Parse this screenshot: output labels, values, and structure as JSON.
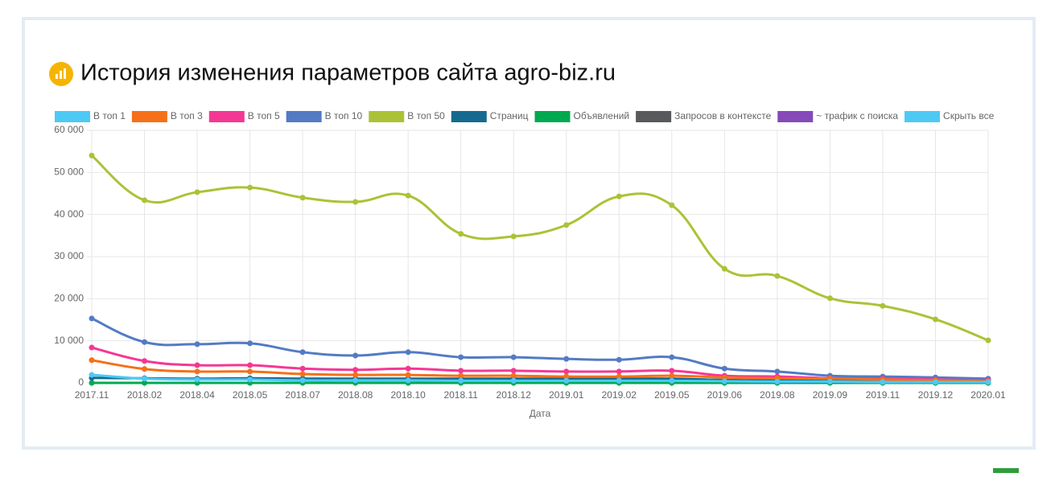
{
  "chart_data": {
    "type": "line",
    "title": "История изменения параметров сайта agro-biz.ru",
    "x_label": "Дата",
    "legend_toggle": "Скрыть все",
    "legend_toggle_color": "#4dc9f6",
    "grid": true,
    "categories": [
      "2017.11",
      "2018.02",
      "2018.04",
      "2018.05",
      "2018.07",
      "2018.08",
      "2018.10",
      "2018.11",
      "2018.12",
      "2019.01",
      "2019.02",
      "2019.05",
      "2019.06",
      "2019.08",
      "2019.09",
      "2019.11",
      "2019.12",
      "2020.01"
    ],
    "ylim": [
      0,
      60000
    ],
    "yticks": [
      0,
      {
        "value": 10000,
        "label": "10 000"
      },
      {
        "value": 20000,
        "label": "20 000"
      },
      {
        "value": 30000,
        "label": "30 000"
      },
      {
        "value": 40000,
        "label": "40 000"
      },
      {
        "value": 50000,
        "label": "50 000"
      },
      {
        "value": 60000,
        "label": "60 000"
      }
    ],
    "series": [
      {
        "name": "В топ 1",
        "color": "#4dc9f6",
        "values": [
          1900,
          1000,
          800,
          800,
          600,
          600,
          600,
          500,
          500,
          500,
          500,
          500,
          400,
          300,
          300,
          200,
          200,
          200
        ]
      },
      {
        "name": "В топ 3",
        "color": "#f67019",
        "values": [
          5400,
          3300,
          2700,
          2700,
          2100,
          1900,
          1900,
          1700,
          1700,
          1500,
          1500,
          1700,
          1300,
          1100,
          1000,
          800,
          600,
          400
        ]
      },
      {
        "name": "В топ 5",
        "color": "#f53794",
        "values": [
          8400,
          5200,
          4200,
          4200,
          3400,
          3100,
          3400,
          2900,
          2900,
          2700,
          2700,
          2900,
          1700,
          1500,
          1100,
          1000,
          800,
          600
        ]
      },
      {
        "name": "В топ 10",
        "color": "#537bc4",
        "values": [
          15300,
          9700,
          9200,
          9400,
          7300,
          6500,
          7300,
          6100,
          6100,
          5700,
          5500,
          6100,
          3400,
          2700,
          1700,
          1500,
          1300,
          1000
        ]
      },
      {
        "name": "В топ 50",
        "color": "#acc236",
        "values": [
          54000,
          43400,
          45300,
          46400,
          44000,
          43000,
          44500,
          35400,
          34800,
          37500,
          44300,
          42200,
          27100,
          25400,
          20100,
          18300,
          15100,
          10100
        ]
      },
      {
        "name": "Страниц",
        "color": "#166a8f",
        "values": [
          1200,
          1100,
          1000,
          1100,
          1000,
          1000,
          1000,
          1000,
          1000,
          1000,
          1000,
          1000,
          700,
          600,
          500,
          400,
          400,
          300
        ]
      },
      {
        "name": "Объявлений",
        "color": "#00a950",
        "values": [
          0,
          0,
          0,
          0,
          0,
          0,
          0,
          0,
          0,
          0,
          0,
          0,
          0,
          0,
          0,
          0,
          0,
          0
        ]
      },
      {
        "name": "Запросов в контексте",
        "color": "#58595b",
        "values": [
          null,
          null,
          null,
          null,
          null,
          null,
          null,
          null,
          null,
          null,
          null,
          null,
          null,
          null,
          null,
          null,
          null,
          null
        ]
      },
      {
        "name": "~ трафик с поиска",
        "color": "#8549ba",
        "values": [
          null,
          null,
          null,
          null,
          null,
          null,
          null,
          null,
          null,
          null,
          null,
          null,
          null,
          null,
          null,
          null,
          null,
          null
        ]
      }
    ]
  }
}
